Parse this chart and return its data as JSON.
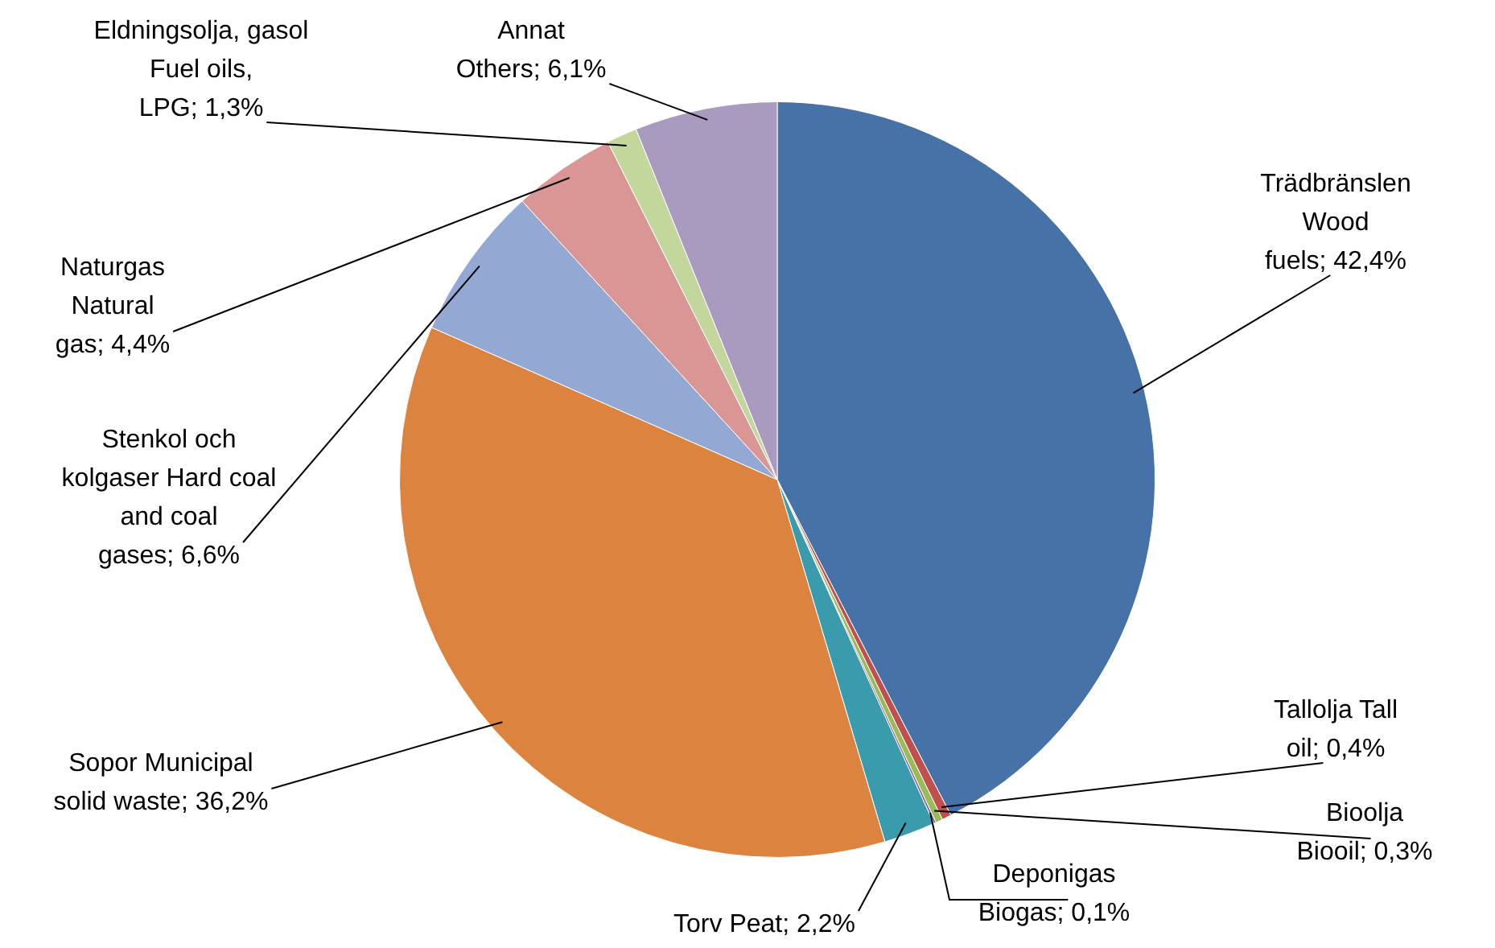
{
  "chart_data": {
    "type": "pie",
    "categories": [
      "Trädbränslen Wood fuels",
      "Tallolja Tall oil",
      "Bioolja Biooil",
      "Deponigas Biogas",
      "Torv Peat",
      "Sopor Municipal solid waste",
      "Stenkol och kolgaser Hard coal and coal gases",
      "Naturgas Natural gas",
      "Eldningsolja, gasol Fuel oils, LPG",
      "Annat Others"
    ],
    "values": [
      42.4,
      0.4,
      0.3,
      0.1,
      2.2,
      36.2,
      6.6,
      4.4,
      1.3,
      6.1
    ],
    "value_labels": [
      "42,4%",
      "0,4%",
      "0,3%",
      "0,1%",
      "2,2%",
      "36,2%",
      "6,6%",
      "4,4%",
      "1,3%",
      "6,1%"
    ],
    "colors": [
      "#4672a8",
      "#c0504d",
      "#9bbb59",
      "#8064a2",
      "#3a9bad",
      "#dc843f",
      "#93a9d4",
      "#d99694",
      "#c3d69b",
      "#a99bbf"
    ]
  }
}
